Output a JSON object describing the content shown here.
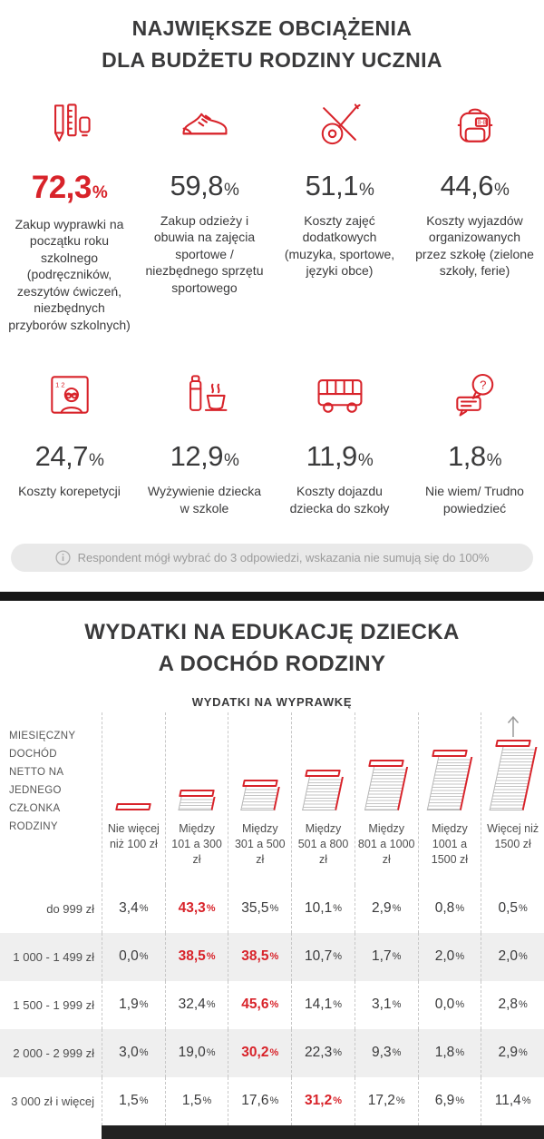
{
  "accent_color": "#d8232a",
  "percent_sign": "%",
  "section1": {
    "title_line1": "NAJWIĘKSZE OBCIĄŻENIA",
    "title_line2": "DLA BUDŻETU RODZINY UCZNIA",
    "items": [
      {
        "icon": "stationery-icon",
        "value": "72,3",
        "label": "Zakup wyprawki na początku roku szkolnego (podręczników, zeszytów ćwiczeń, niezbędnych przyborów szkolnych)"
      },
      {
        "icon": "sneaker-icon",
        "value": "59,8",
        "label": "Zakup odzieży i obuwia na zajęcia sportowe / niezbędnego sprzętu sportowego"
      },
      {
        "icon": "guitar-icon",
        "value": "51,1",
        "label": "Koszty zajęć dodatkowych (muzyka, sportowe, języki obce)"
      },
      {
        "icon": "backpack-icon",
        "value": "44,6",
        "label": "Koszty wyjazdów organizowanych przez szkołę (zielone szkoły, ferie)"
      },
      {
        "icon": "tutor-icon",
        "value": "24,7",
        "label": "Koszty korepetycji"
      },
      {
        "icon": "thermos-cup-icon",
        "value": "12,9",
        "label": "Wyżywienie dziecka w szkole"
      },
      {
        "icon": "bus-icon",
        "value": "11,9",
        "label": "Koszty dojazdu dziecka do szkoły"
      },
      {
        "icon": "chat-question-icon",
        "value": "1,8",
        "label": "Nie wiem/ Trudno powiedzieć"
      }
    ],
    "note": "Respondent mógł wybrać do 3 odpowiedzi, wskazania nie sumują się do 100%"
  },
  "section2": {
    "title_line1": "WYDATKI NA EDUKACJĘ DZIECKA",
    "title_line2": "A DOCHÓD RODZINY",
    "subtitle": "WYDATKI NA WYPRAWKĘ",
    "row_header": "MIESIĘCZNY DOCHÓD NETTO NA JEDNEGO CZŁONKA RODZINY",
    "columns": [
      {
        "label": "Nie więcej niż 100 zł",
        "stack_level": 0
      },
      {
        "label": "Między 101 a 300 zł",
        "stack_level": 1
      },
      {
        "label": "Między 301 a 500 zł",
        "stack_level": 2
      },
      {
        "label": "Między 501 a 800 zł",
        "stack_level": 3
      },
      {
        "label": "Między 801 a 1000 zł",
        "stack_level": 4
      },
      {
        "label": "Między 1001 a 1500 zł",
        "stack_level": 5
      },
      {
        "label": "Więcej niż 1500 zł",
        "stack_level": 6
      }
    ],
    "rows": [
      {
        "label": "do 999 zł",
        "values": [
          "3,4",
          "43,3",
          "35,5",
          "10,1",
          "2,9",
          "0,8",
          "0,5"
        ]
      },
      {
        "label": "1 000 - 1 499 zł",
        "values": [
          "0,0",
          "38,5",
          "38,5",
          "10,7",
          "1,7",
          "2,0",
          "2,0"
        ]
      },
      {
        "label": "1 500 - 1 999 zł",
        "values": [
          "1,9",
          "32,4",
          "45,6",
          "14,1",
          "3,1",
          "0,0",
          "2,8"
        ]
      },
      {
        "label": "2 000 - 2 999 zł",
        "values": [
          "3,0",
          "19,0",
          "30,2",
          "22,3",
          "9,3",
          "1,8",
          "2,9"
        ]
      },
      {
        "label": "3 000 zł i więcej",
        "values": [
          "1,5",
          "1,5",
          "17,6",
          "31,2",
          "17,2",
          "6,9",
          "11,4"
        ]
      }
    ]
  },
  "chart_data": [
    {
      "type": "bar",
      "title": "NAJWIĘKSZE OBCIĄŻENIA DLA BUDŻETU RODZINY UCZNIA",
      "categories": [
        "Zakup wyprawki na początku roku szkolnego (podręczników, zeszytów ćwiczeń, niezbędnych przyborów szkolnych)",
        "Zakup odzieży i obuwia na zajęcia sportowe / niezbędnego sprzętu sportowego",
        "Koszty zajęć dodatkowych (muzyka, sportowe, języki obce)",
        "Koszty wyjazdów organizowanych przez szkołę (zielone szkoły, ferie)",
        "Koszty korepetycji",
        "Wyżywienie dziecka w szkole",
        "Koszty dojazdu dziecka do szkoły",
        "Nie wiem/ Trudno powiedzieć"
      ],
      "values": [
        72.3,
        59.8,
        51.1,
        44.6,
        24.7,
        12.9,
        11.9,
        1.8
      ],
      "unit": "%",
      "note": "Respondent mógł wybrać do 3 odpowiedzi, wskazania nie sumują się do 100%"
    },
    {
      "type": "table",
      "title": "WYDATKI NA EDUKACJĘ DZIECKA A DOCHÓD RODZINY",
      "subtitle": "WYDATKI NA WYPRAWKĘ",
      "row_label_header": "MIESIĘCZNY DOCHÓD NETTO NA JEDNEGO CZŁONKA RODZINY",
      "columns": [
        "Nie więcej niż 100 zł",
        "Między 101 a 300 zł",
        "Między 301 a 500 zł",
        "Między 501 a 800 zł",
        "Między 801 a 1000 zł",
        "Między 1001 a 1500 zł",
        "Więcej niż 1500 zł"
      ],
      "rows": [
        {
          "label": "do 999 zł",
          "values": [
            3.4,
            43.3,
            35.5,
            10.1,
            2.9,
            0.8,
            0.5
          ],
          "highlight_index": 1
        },
        {
          "label": "1 000 - 1 499 zł",
          "values": [
            0.0,
            38.5,
            38.5,
            10.7,
            1.7,
            2.0,
            2.0
          ],
          "highlight_index": 1
        },
        {
          "label": "1 500 - 1 999 zł",
          "values": [
            1.9,
            32.4,
            45.6,
            14.1,
            3.1,
            0.0,
            2.8
          ],
          "highlight_index": 2
        },
        {
          "label": "2 000 - 2 999 zł",
          "values": [
            3.0,
            19.0,
            30.2,
            22.3,
            9.3,
            1.8,
            2.9
          ],
          "highlight_index": 2
        },
        {
          "label": "3 000 zł i więcej",
          "values": [
            1.5,
            1.5,
            17.6,
            31.2,
            17.2,
            6.9,
            11.4
          ],
          "highlight_index": 3
        }
      ],
      "unit": "%"
    }
  ]
}
